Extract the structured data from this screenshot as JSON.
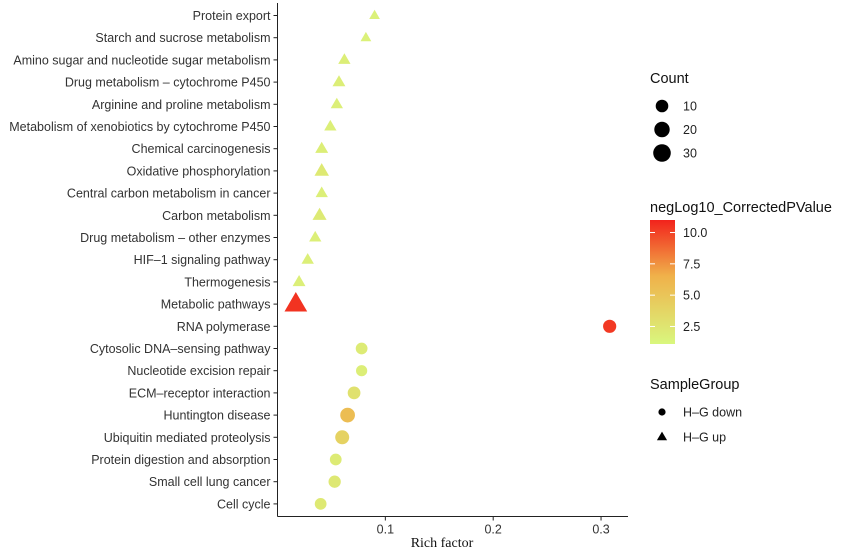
{
  "chart_data": {
    "type": "scatter",
    "xlabel": "Rich factor",
    "xlim": [
      0,
      0.325
    ],
    "x_ticks": [
      "0.1",
      "0.2",
      "0.3"
    ],
    "categories": [
      "Protein export",
      "Starch and sucrose metabolism",
      "Amino sugar and nucleotide sugar metabolism",
      "Drug metabolism – cytochrome P450",
      "Arginine and proline metabolism",
      "Metabolism of xenobiotics by cytochrome P450",
      "Chemical carcinogenesis",
      "Oxidative phosphorylation",
      "Central carbon metabolism in cancer",
      "Carbon metabolism",
      "Drug metabolism – other enzymes",
      "HIF–1 signaling pathway",
      "Thermogenesis",
      "Metabolic pathways",
      "RNA polymerase",
      "Cytosolic DNA–sensing pathway",
      "Nucleotide excision repair",
      "ECM–receptor interaction",
      "Huntington disease",
      "Ubiquitin mediated proteolysis",
      "Protein digestion and absorption",
      "Small cell lung cancer",
      "Cell cycle"
    ],
    "points": [
      {
        "pathway": "Protein export",
        "rich_factor": 0.09,
        "count": 2,
        "neg_log10_p": 1.6,
        "group": "H–G up"
      },
      {
        "pathway": "Starch and sucrose metabolism",
        "rich_factor": 0.082,
        "count": 2,
        "neg_log10_p": 1.6,
        "group": "H–G up"
      },
      {
        "pathway": "Amino sugar and nucleotide sugar metabolism",
        "rich_factor": 0.062,
        "count": 4,
        "neg_log10_p": 1.8,
        "group": "H–G up"
      },
      {
        "pathway": "Drug metabolism – cytochrome P450",
        "rich_factor": 0.057,
        "count": 5,
        "neg_log10_p": 1.8,
        "group": "H–G up"
      },
      {
        "pathway": "Arginine and proline metabolism",
        "rich_factor": 0.055,
        "count": 4,
        "neg_log10_p": 1.7,
        "group": "H–G up"
      },
      {
        "pathway": "Metabolism of xenobiotics by cytochrome P450",
        "rich_factor": 0.049,
        "count": 4,
        "neg_log10_p": 1.7,
        "group": "H–G up"
      },
      {
        "pathway": "Chemical carcinogenesis",
        "rich_factor": 0.041,
        "count": 5,
        "neg_log10_p": 1.8,
        "group": "H–G up"
      },
      {
        "pathway": "Oxidative phosphorylation",
        "rich_factor": 0.041,
        "count": 8,
        "neg_log10_p": 2.2,
        "group": "H–G up"
      },
      {
        "pathway": "Central carbon metabolism in cancer",
        "rich_factor": 0.041,
        "count": 4,
        "neg_log10_p": 1.7,
        "group": "H–G up"
      },
      {
        "pathway": "Carbon metabolism",
        "rich_factor": 0.039,
        "count": 7,
        "neg_log10_p": 2.1,
        "group": "H–G up"
      },
      {
        "pathway": "Drug metabolism – other enzymes",
        "rich_factor": 0.035,
        "count": 4,
        "neg_log10_p": 1.7,
        "group": "H–G up"
      },
      {
        "pathway": "HIF–1 signaling pathway",
        "rich_factor": 0.028,
        "count": 4,
        "neg_log10_p": 1.7,
        "group": "H–G up"
      },
      {
        "pathway": "Thermogenesis",
        "rich_factor": 0.02,
        "count": 5,
        "neg_log10_p": 1.7,
        "group": "H–G up"
      },
      {
        "pathway": "Metabolic pathways",
        "rich_factor": 0.017,
        "count": 35,
        "neg_log10_p": 10.5,
        "group": "H–G up"
      },
      {
        "pathway": "RNA polymerase",
        "rich_factor": 0.308,
        "count": 8,
        "neg_log10_p": 10.3,
        "group": "H–G down"
      },
      {
        "pathway": "Cytosolic DNA–sensing pathway",
        "rich_factor": 0.078,
        "count": 5,
        "neg_log10_p": 2.0,
        "group": "H–G down"
      },
      {
        "pathway": "Nucleotide excision repair",
        "rich_factor": 0.078,
        "count": 4,
        "neg_log10_p": 1.8,
        "group": "H–G down"
      },
      {
        "pathway": "ECM–receptor interaction",
        "rich_factor": 0.071,
        "count": 7,
        "neg_log10_p": 2.8,
        "group": "H–G down"
      },
      {
        "pathway": "Huntington disease",
        "rich_factor": 0.065,
        "count": 12,
        "neg_log10_p": 5.6,
        "group": "H–G down"
      },
      {
        "pathway": "Ubiquitin mediated proteolysis",
        "rich_factor": 0.06,
        "count": 10,
        "neg_log10_p": 4.0,
        "group": "H–G down"
      },
      {
        "pathway": "Protein digestion and absorption",
        "rich_factor": 0.054,
        "count": 5,
        "neg_log10_p": 2.0,
        "group": "H–G down"
      },
      {
        "pathway": "Small cell lung cancer",
        "rich_factor": 0.053,
        "count": 6,
        "neg_log10_p": 2.3,
        "group": "H–G down"
      },
      {
        "pathway": "Cell cycle",
        "rich_factor": 0.04,
        "count": 5,
        "neg_log10_p": 2.2,
        "group": "H–G down"
      }
    ],
    "legend": {
      "size_title": "Count",
      "size_values": [
        10,
        20,
        30
      ],
      "size_labels": [
        "10",
        "20",
        "30"
      ],
      "color_title": "negLog10_CorrectedPValue",
      "color_range": [
        1.1,
        11.0
      ],
      "color_ticks": [
        2.5,
        5.0,
        7.5,
        10.0
      ],
      "color_tick_labels": [
        "2.5",
        "5.0",
        "7.5",
        "10.0"
      ],
      "color_low": "#d9f77e",
      "color_high": "#f2231c",
      "shape_title": "SampleGroup",
      "shape_entries": [
        {
          "label": "H–G down",
          "shape": "circle"
        },
        {
          "label": "H–G up",
          "shape": "triangle"
        }
      ]
    }
  }
}
